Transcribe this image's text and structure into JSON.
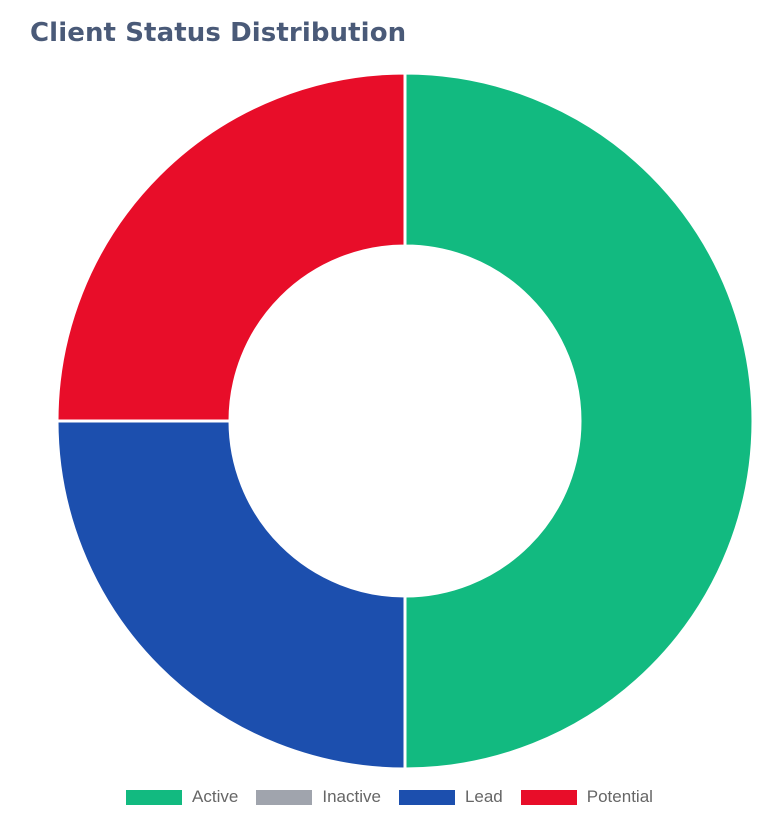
{
  "chart_data": {
    "type": "pie",
    "variant": "doughnut",
    "title": "Client Status Distribution",
    "categories": [
      "Active",
      "Inactive",
      "Lead",
      "Potential"
    ],
    "values": [
      2,
      0,
      1,
      1
    ],
    "colors": [
      "#12ba80",
      "#a0a4ad",
      "#1c4fae",
      "#e80d29"
    ],
    "legend_position": "bottom"
  }
}
